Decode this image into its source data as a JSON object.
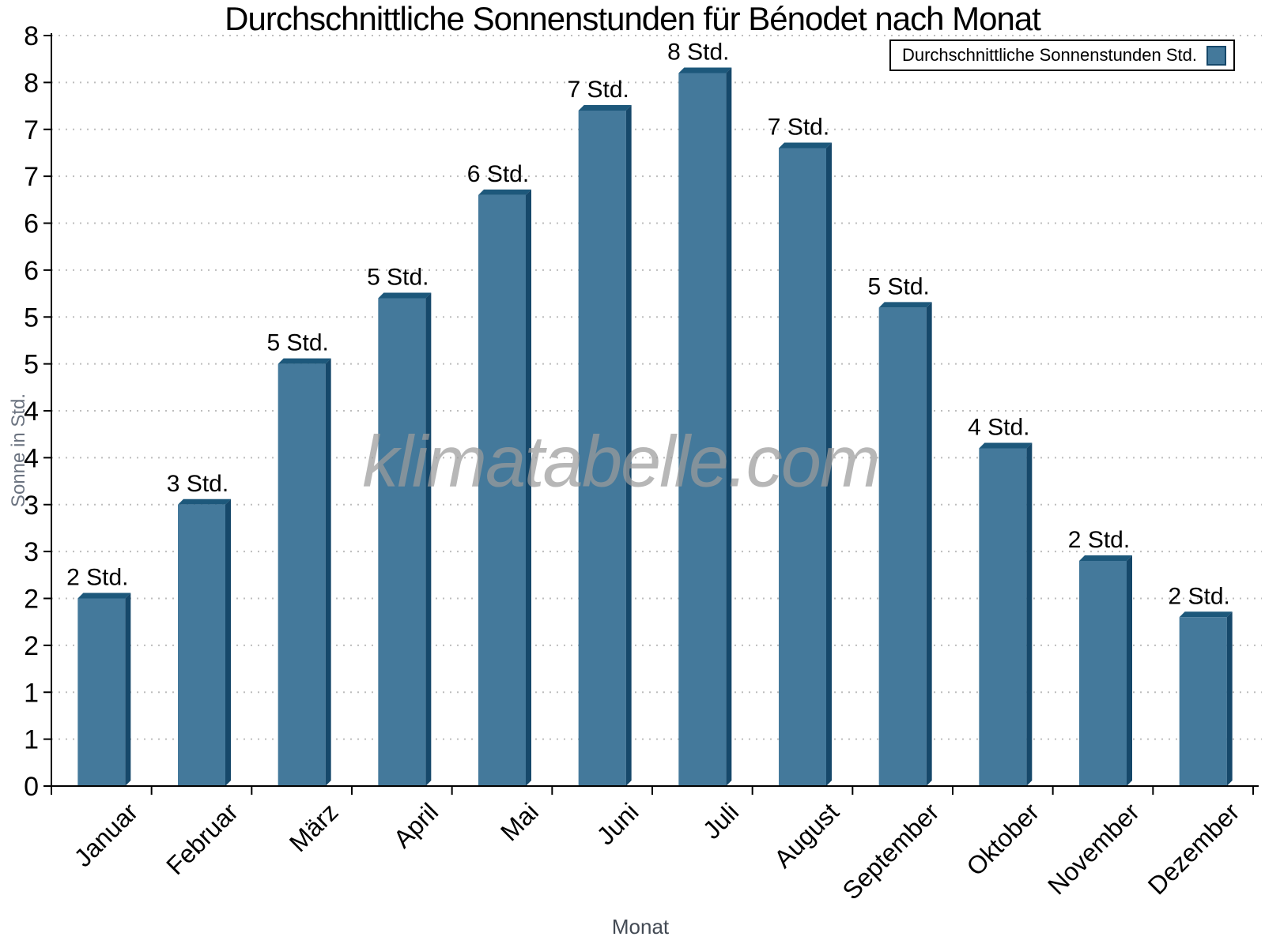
{
  "title": "Durchschnittliche Sonnenstunden für Bénodet nach Monat",
  "watermark": "klimatabelle.com",
  "legend": {
    "label": "Durchschnittliche Sonnenstunden Std.",
    "position": "top-right"
  },
  "axes": {
    "xlabel": "Monat",
    "ylabel": "Sonne in Std.",
    "y_min": 0,
    "y_max": 8,
    "y_tick_step": 0.5,
    "y_tick_label_rule": "ticks every 0.5 Std., labeled with rounded integer (0,1,1,2,2,...,8,8)",
    "grid": "horizontal dotted lines at every tick"
  },
  "chart_data": {
    "type": "bar",
    "title": "Durchschnittliche Sonnenstunden für Bénodet nach Monat",
    "xlabel": "Monat",
    "ylabel": "Sonne in Std.",
    "ylim": [
      0,
      8
    ],
    "legend_position": "top-right",
    "grid": "on (dotted, horizontal, every 0.5)",
    "categories": [
      "Januar",
      "Februar",
      "März",
      "April",
      "Mai",
      "Juni",
      "Juli",
      "August",
      "September",
      "Oktober",
      "November",
      "Dezember"
    ],
    "series": [
      {
        "name": "Durchschnittliche Sonnenstunden Std.",
        "values": [
          2.0,
          3.0,
          4.5,
          5.2,
          6.3,
          7.2,
          7.6,
          6.8,
          5.1,
          3.6,
          2.4,
          1.8
        ],
        "data_labels": [
          "2 Std.",
          "3 Std.",
          "5 Std.",
          "5 Std.",
          "6 Std.",
          "7 Std.",
          "8 Std.",
          "7 Std.",
          "5 Std.",
          "4 Std.",
          "2 Std.",
          "2 Std."
        ]
      }
    ],
    "y_tick_labels_top_to_bottom": [
      "8",
      "8",
      "7",
      "7",
      "6",
      "6",
      "5",
      "5",
      "4",
      "4",
      "3",
      "3",
      "2",
      "2",
      "1",
      "1",
      "0"
    ]
  },
  "colors": {
    "bar_front": "#44799B",
    "bar_side": "#16486A",
    "bar_top": "#1D587B",
    "grid_line": "#BDBDBD",
    "axis_line": "#000000",
    "y_axis_title_gray": "#6B7380",
    "x_axis_title_gray": "#434A54",
    "watermark_gray": "#9C9C9C",
    "legend_border": "#000000"
  }
}
